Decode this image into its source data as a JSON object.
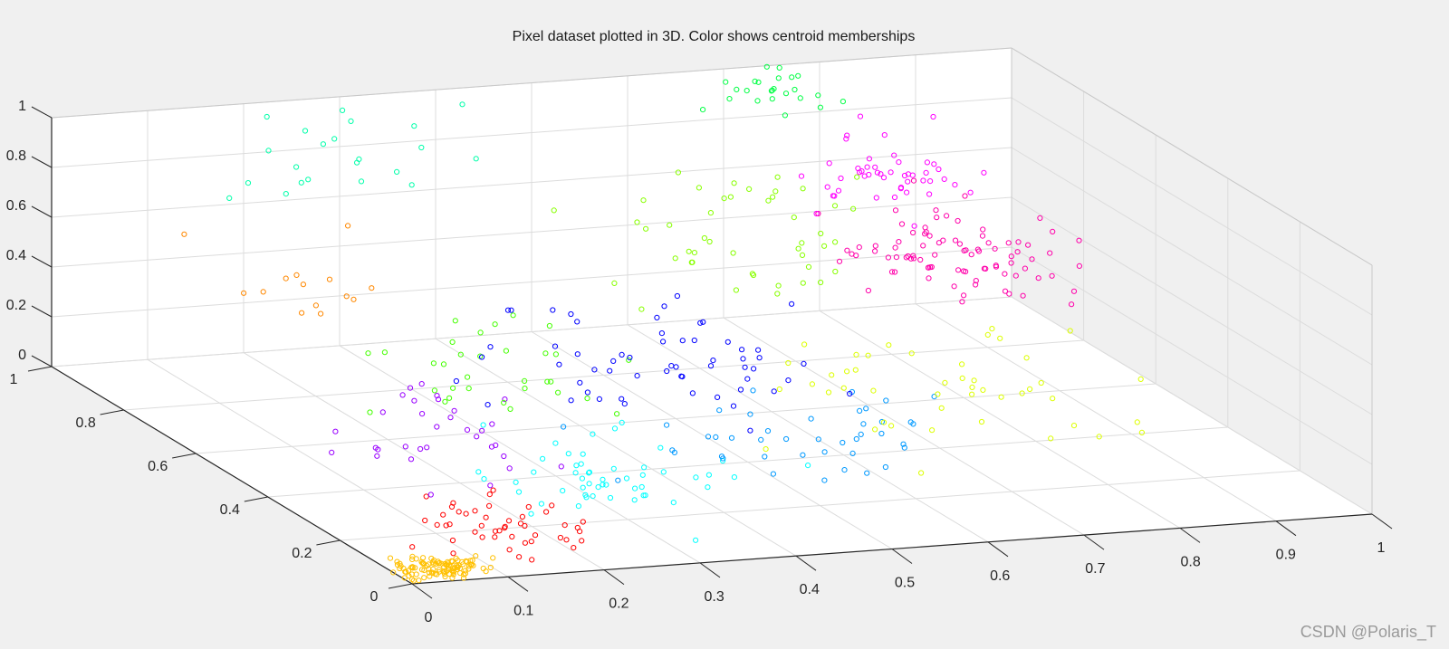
{
  "chart_data": {
    "type": "scatter",
    "title": "Pixel dataset plotted in 3D. Color shows centroid memberships",
    "xlabel": "",
    "ylabel": "",
    "zlabel": "",
    "xlim": [
      0,
      1
    ],
    "ylim": [
      0,
      1
    ],
    "zlim": [
      0,
      1
    ],
    "x_ticks": [
      "0",
      "0.1",
      "0.2",
      "0.3",
      "0.4",
      "0.5",
      "0.6",
      "0.7",
      "0.8",
      "0.9",
      "1"
    ],
    "y_ticks": [
      "0",
      "0.2",
      "0.4",
      "0.6",
      "0.8",
      "1"
    ],
    "z_ticks": [
      "0",
      "0.2",
      "0.4",
      "0.6",
      "0.8",
      "1"
    ],
    "grid": true,
    "marker": "hollow circle",
    "clusters": [
      {
        "color": "#ffc000",
        "center": [
          0.04,
          0.03,
          0.03
        ],
        "spread": [
          0.025,
          0.02,
          0.02
        ],
        "count": 110
      },
      {
        "color": "#ff0000",
        "center": [
          0.14,
          0.12,
          0.08
        ],
        "spread": [
          0.05,
          0.05,
          0.04
        ],
        "count": 48
      },
      {
        "color": "#9900ff",
        "center": [
          0.16,
          0.34,
          0.26
        ],
        "spread": [
          0.05,
          0.09,
          0.06
        ],
        "count": 32
      },
      {
        "color": "#00ffff",
        "center": [
          0.3,
          0.24,
          0.12
        ],
        "spread": [
          0.07,
          0.07,
          0.05
        ],
        "count": 52
      },
      {
        "color": "#44ff00",
        "center": [
          0.32,
          0.6,
          0.24
        ],
        "spread": [
          0.07,
          0.1,
          0.08
        ],
        "count": 32
      },
      {
        "color": "#ff8800",
        "center": [
          0.17,
          0.77,
          0.45
        ],
        "spread": [
          0.04,
          0.06,
          0.09
        ],
        "count": 14
      },
      {
        "color": "#0099ff",
        "center": [
          0.53,
          0.34,
          0.13
        ],
        "spread": [
          0.08,
          0.08,
          0.05
        ],
        "count": 42
      },
      {
        "color": "#0000ff",
        "center": [
          0.49,
          0.62,
          0.24
        ],
        "spread": [
          0.08,
          0.1,
          0.08
        ],
        "count": 58
      },
      {
        "color": "#ddff00",
        "center": [
          0.76,
          0.5,
          0.12
        ],
        "spread": [
          0.09,
          0.13,
          0.06
        ],
        "count": 46
      },
      {
        "color": "#88ff00",
        "center": [
          0.66,
          0.8,
          0.5
        ],
        "spread": [
          0.07,
          0.08,
          0.12
        ],
        "count": 46
      },
      {
        "color": "#00ffaa",
        "center": [
          0.28,
          0.92,
          0.85
        ],
        "spread": [
          0.08,
          0.05,
          0.1
        ],
        "count": 22
      },
      {
        "color": "#ff00aa",
        "center": [
          0.85,
          0.75,
          0.42
        ],
        "spread": [
          0.05,
          0.08,
          0.07
        ],
        "count": 88
      },
      {
        "color": "#ff00ff",
        "center": [
          0.83,
          0.89,
          0.63
        ],
        "spread": [
          0.04,
          0.05,
          0.07
        ],
        "count": 48
      },
      {
        "color": "#00ff44",
        "center": [
          0.73,
          0.96,
          0.93
        ],
        "spread": [
          0.03,
          0.03,
          0.05
        ],
        "count": 24
      }
    ]
  },
  "watermark": "CSDN @Polaris_T"
}
